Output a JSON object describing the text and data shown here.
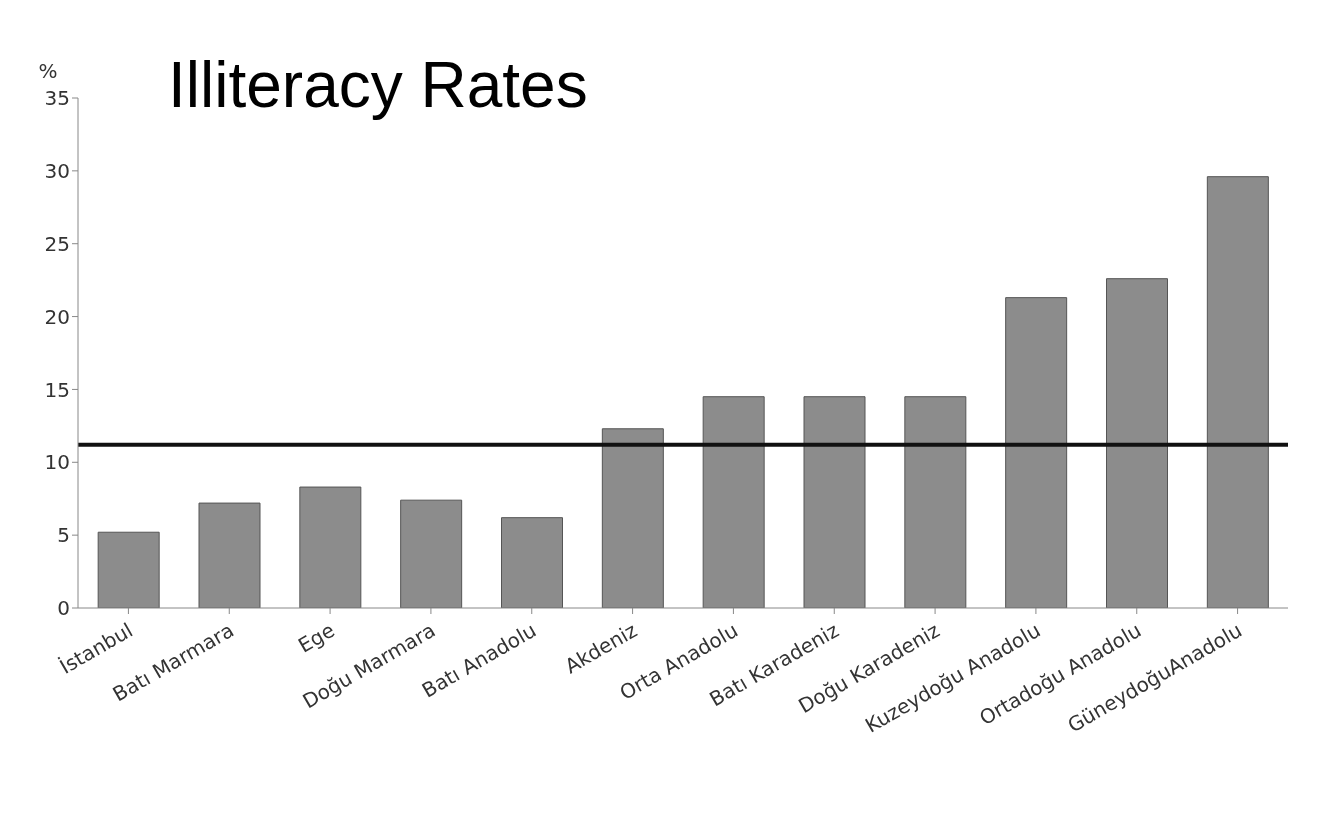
{
  "chart_data": {
    "type": "bar",
    "title": "Illiteracy Rates",
    "ylabel": "%",
    "categories": [
      "İstanbul",
      "Batı Marmara",
      "Ege",
      "Doğu Marmara",
      "Batı Anadolu",
      "Akdeniz",
      "Orta Anadolu",
      "Batı Karadeniz",
      "Doğu Karadeniz",
      "Kuzeydoğu Anadolu",
      "Ortadoğu Anadolu",
      "GüneydoğuAnadolu"
    ],
    "values": [
      5.2,
      7.2,
      8.3,
      7.4,
      6.2,
      12.3,
      14.5,
      14.5,
      14.5,
      21.3,
      22.6,
      29.6
    ],
    "color": "#8c8c8c",
    "ylim": [
      0,
      35
    ],
    "yticks": [
      0,
      5,
      10,
      15,
      20,
      25,
      30,
      35
    ],
    "grid": false,
    "ref_lines": [
      {
        "axis": "y",
        "value": 11.2,
        "color": "#111111"
      }
    ]
  }
}
